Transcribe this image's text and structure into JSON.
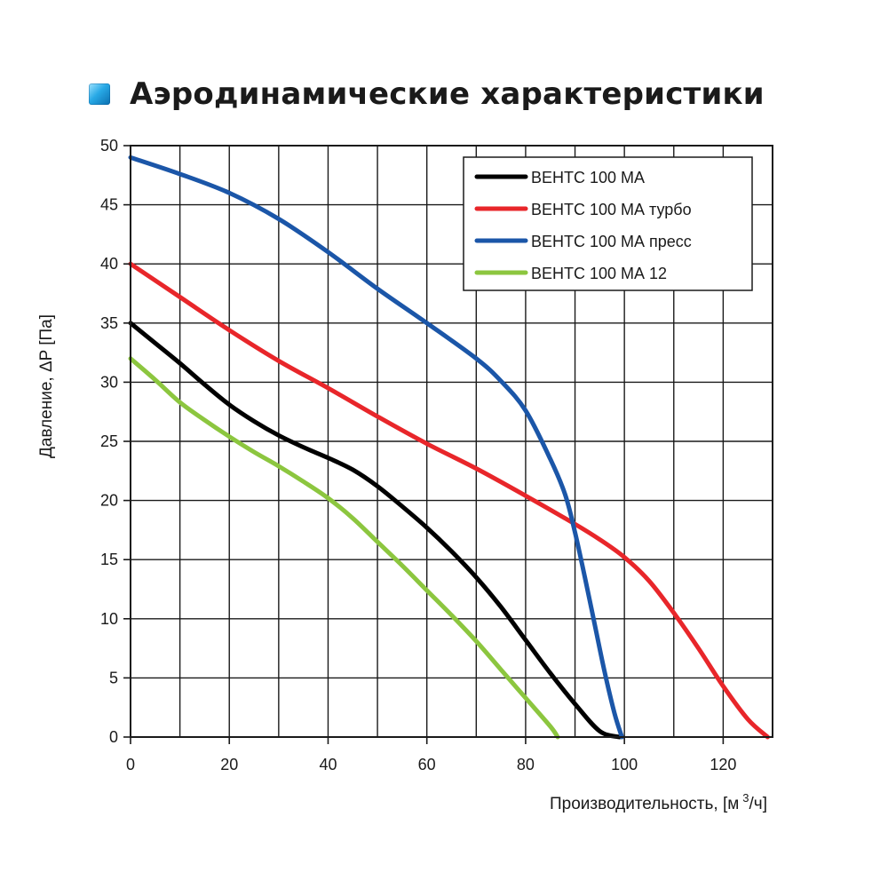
{
  "title": "Аэродинамические характеристики",
  "title_icon": "blue-square-icon",
  "chart_data": {
    "type": "line",
    "xlabel": "Производительность, [м",
    "xlabel_sup": "3",
    "xlabel_end": "/ч]",
    "ylabel": "Давление, ΔP [Па]",
    "xlim": [
      0,
      130
    ],
    "ylim": [
      0,
      50
    ],
    "x_ticks": [
      0,
      20,
      40,
      60,
      80,
      100,
      120
    ],
    "y_ticks": [
      0,
      5,
      10,
      15,
      20,
      25,
      30,
      35,
      40,
      45,
      50
    ],
    "x_minor_step": 10,
    "grid": true,
    "legend_position": "top-right",
    "series": [
      {
        "name": "ВЕНТС 100 МА",
        "color": "#000000",
        "x": [
          0,
          5,
          10,
          15,
          20,
          25,
          30,
          35,
          40,
          45,
          50,
          55,
          60,
          65,
          70,
          75,
          80,
          85,
          90,
          95,
          99
        ],
        "y": [
          35,
          33.3,
          31.6,
          29.8,
          28.1,
          26.7,
          25.5,
          24.5,
          23.6,
          22.6,
          21.2,
          19.5,
          17.7,
          15.7,
          13.5,
          11,
          8.2,
          5.4,
          2.8,
          0.5,
          0
        ]
      },
      {
        "name": "ВЕНТС 100 МА турбо",
        "color": "#e8262a",
        "x": [
          0,
          10,
          20,
          30,
          40,
          50,
          60,
          70,
          80,
          90,
          95,
          100,
          105,
          110,
          115,
          120,
          125,
          129
        ],
        "y": [
          40,
          37.2,
          34.4,
          31.8,
          29.5,
          27.1,
          24.8,
          22.7,
          20.4,
          18,
          16.7,
          15.2,
          13.2,
          10.5,
          7.5,
          4.3,
          1.5,
          0
        ]
      },
      {
        "name": "ВЕНТС 100 МА пресс",
        "color": "#1b56a8",
        "x": [
          0,
          10,
          20,
          30,
          40,
          50,
          60,
          70,
          75,
          80,
          85,
          88,
          90,
          92,
          94,
          96,
          98,
          99.5
        ],
        "y": [
          49,
          47.6,
          46,
          43.8,
          41,
          37.9,
          35,
          32,
          30.1,
          27.6,
          23.5,
          20.5,
          17.3,
          13.5,
          9.5,
          5.5,
          2,
          0
        ]
      },
      {
        "name": "ВЕНТС 100 МА 12",
        "color": "#8cc63f",
        "x": [
          0,
          5,
          10,
          15,
          20,
          25,
          30,
          35,
          40,
          45,
          50,
          55,
          60,
          65,
          70,
          75,
          80,
          85,
          86.5
        ],
        "y": [
          32,
          30.2,
          28.3,
          26.8,
          25.4,
          24.1,
          22.9,
          21.6,
          20.2,
          18.5,
          16.5,
          14.5,
          12.4,
          10.3,
          8.1,
          5.7,
          3.3,
          0.9,
          0
        ]
      }
    ]
  }
}
